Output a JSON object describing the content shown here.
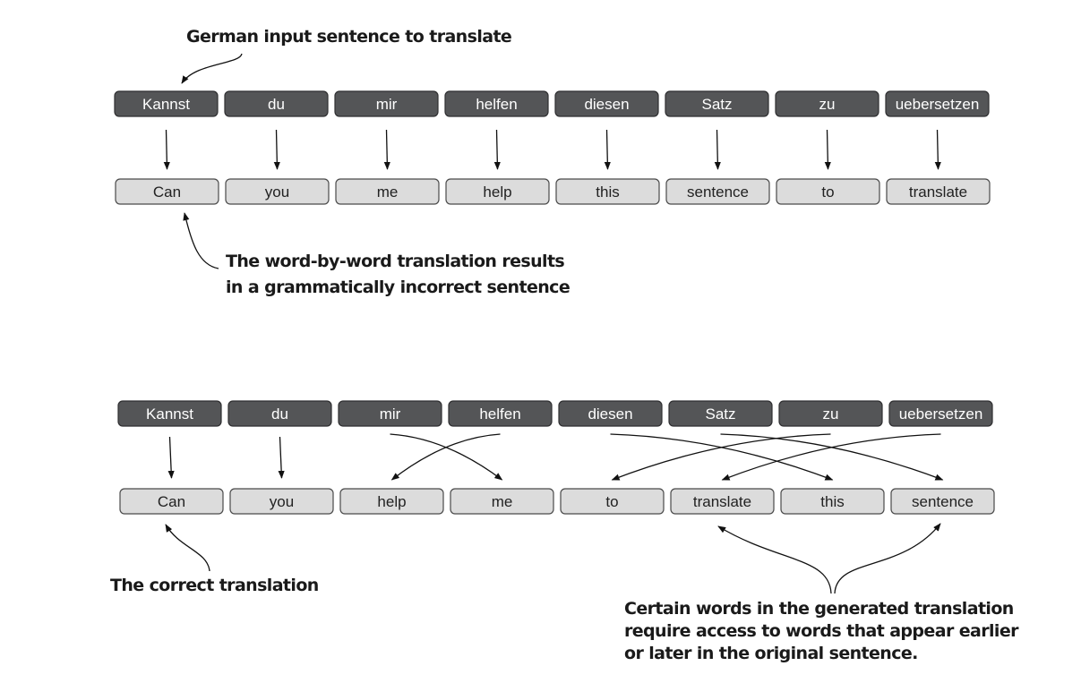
{
  "top_section": {
    "source_tokens": [
      "Kannst",
      "du",
      "mir",
      "helfen",
      "diesen",
      "Satz",
      "zu",
      "uebersetzen"
    ],
    "target_tokens": [
      "Can",
      "you",
      "me",
      "help",
      "this",
      "sentence",
      "to",
      "translate"
    ],
    "alignment": [
      [
        0,
        0
      ],
      [
        1,
        1
      ],
      [
        2,
        2
      ],
      [
        3,
        3
      ],
      [
        4,
        4
      ],
      [
        5,
        5
      ],
      [
        6,
        6
      ],
      [
        7,
        7
      ]
    ],
    "annotation_input": "German input sentence to translate",
    "annotation_wordbyword": [
      "The word-by-word translation results",
      "in a grammatically incorrect sentence"
    ]
  },
  "bottom_section": {
    "source_tokens": [
      "Kannst",
      "du",
      "mir",
      "helfen",
      "diesen",
      "Satz",
      "zu",
      "uebersetzen"
    ],
    "target_tokens": [
      "Can",
      "you",
      "help",
      "me",
      "to",
      "translate",
      "this",
      "sentence"
    ],
    "alignment": [
      [
        0,
        0
      ],
      [
        1,
        1
      ],
      [
        2,
        3
      ],
      [
        3,
        2
      ],
      [
        4,
        6
      ],
      [
        5,
        7
      ],
      [
        6,
        4
      ],
      [
        7,
        5
      ]
    ],
    "annotation_correct": "The correct translation",
    "annotation_access": [
      "Certain words in the generated translation",
      "require access to words that appear earlier",
      "or later in the original sentence."
    ]
  },
  "colors": {
    "source_box": "#545557",
    "target_box": "#dcdcdc",
    "arrow": "#111111"
  }
}
